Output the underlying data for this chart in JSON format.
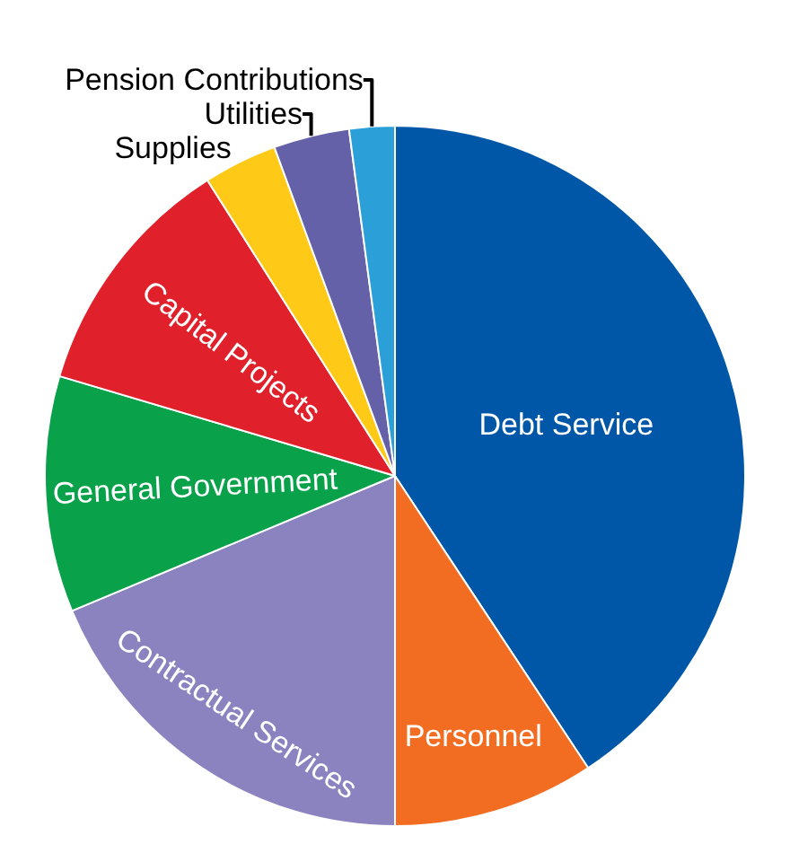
{
  "chart_data": {
    "type": "pie",
    "categories": [
      "Debt Service",
      "Personnel",
      "Contractual Services",
      "General Government",
      "Capital Projects",
      "Supplies",
      "Utilities",
      "Pension Contributions"
    ],
    "values": [
      40.7,
      9.3,
      18.7,
      10.9,
      11.4,
      3.4,
      3.5,
      2.1
    ],
    "colors": [
      "#0057a8",
      "#f26d21",
      "#8b83c0",
      "#0aa14b",
      "#e0202a",
      "#ffc917",
      "#6461a8",
      "#2a9fd8"
    ],
    "legend": false
  }
}
